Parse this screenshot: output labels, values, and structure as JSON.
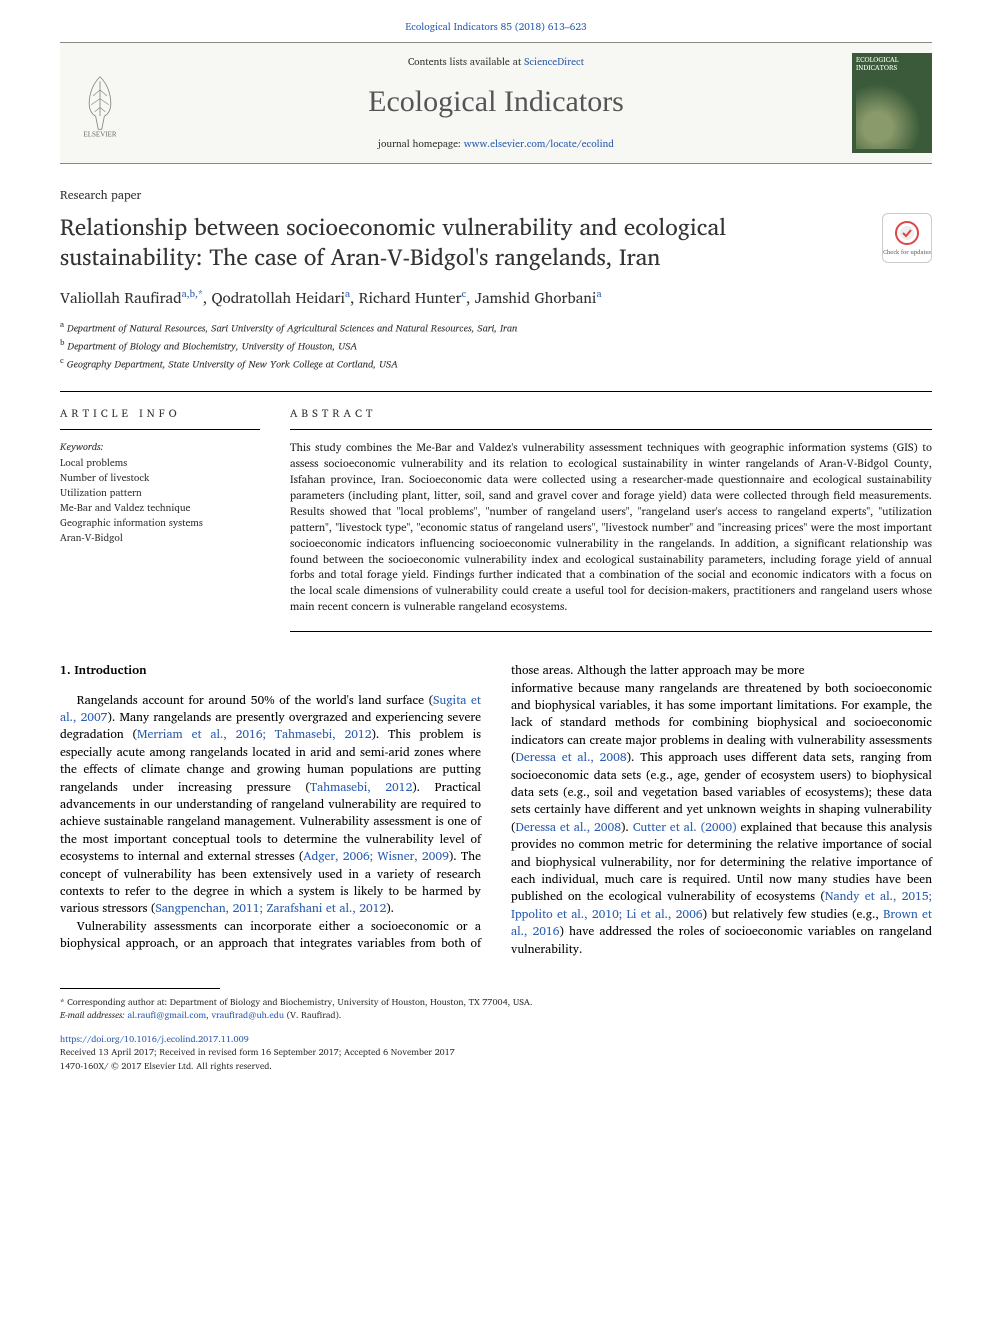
{
  "citation": "Ecological Indicators 85 (2018) 613–623",
  "masthead": {
    "contents_prefix": "Contents lists available at ",
    "contents_link": "ScienceDirect",
    "journal_name": "Ecological Indicators",
    "homepage_prefix": "journal homepage: ",
    "homepage_url": "www.elsevier.com/locate/ecolind",
    "publisher": "ELSEVIER",
    "cover_label": "ECOLOGICAL INDICATORS"
  },
  "article": {
    "type": "Research paper",
    "title": "Relationship between socioeconomic vulnerability and ecological sustainability: The case of Aran-V-Bidgol's rangelands, Iran",
    "check_updates_label": "Check for updates"
  },
  "authors_html": "Valiollah Raufirad<sup>a,b,*</sup>, Qodratollah Heidari<sup>a</sup>, Richard Hunter<sup>c</sup>, Jamshid Ghorbani<sup>a</sup>",
  "affiliations": [
    {
      "sup": "a",
      "text": "Department of Natural Resources, Sari University of Agricultural Sciences and Natural Resources, Sari, Iran"
    },
    {
      "sup": "b",
      "text": "Department of Biology and Biochemistry, University of Houston, USA"
    },
    {
      "sup": "c",
      "text": "Geography Department, State University of New York College at Cortland, USA"
    }
  ],
  "info": {
    "section_label": "ARTICLE INFO",
    "keywords_label": "Keywords:",
    "keywords": [
      "Local problems",
      "Number of livestock",
      "Utilization pattern",
      "Me-Bar and Valdez technique",
      "Geographic information systems",
      "Aran-V-Bidgol"
    ]
  },
  "abstract": {
    "section_label": "ABSTRACT",
    "text": "This study combines the Me-Bar and Valdez's vulnerability assessment techniques with geographic information systems (GIS) to assess socioeconomic vulnerability and its relation to ecological sustainability in winter rangelands of Aran-V-Bidgol County, Isfahan province, Iran. Socioeconomic data were collected using a researcher-made questionnaire and ecological sustainability parameters (including plant, litter, soil, sand and gravel cover and forage yield) data were collected through field measurements. Results showed that \"local problems\", \"number of rangeland users\", \"rangeland user's access to rangeland experts\", \"utilization pattern\", \"livestock type\", \"economic status of rangeland users\", \"livestock number\" and \"increasing prices\" were the most important socioeconomic indicators influencing socioeconomic vulnerability in the rangelands. In addition, a significant relationship was found between the socioeconomic vulnerability index and ecological sustainability parameters, including forage yield of annual forbs and total forage yield. Findings further indicated that a combination of the social and economic indicators with a focus on the local scale dimensions of vulnerability could create a useful tool for decision-makers, practitioners and rangeland users whose main recent concern is vulnerable rangeland ecosystems."
  },
  "body": {
    "heading": "1. Introduction",
    "p1_pre": "Rangelands account for around 50% of the world's land surface (",
    "p1_c1": "Sugita et al., 2007",
    "p1_mid1": "). Many rangelands are presently overgrazed and experiencing severe degradation (",
    "p1_c2": "Merriam et al., 2016; Tahmasebi, 2012",
    "p1_mid2": "). This problem is especially acute among rangelands located in arid and semi-arid zones where the effects of climate change and growing human populations are putting rangelands under increasing pressure (",
    "p1_c3": "Tahmasebi, 2012",
    "p1_mid3": "). Practical advancements in our understanding of rangeland vulnerability are required to achieve sustainable rangeland management. Vulnerability assessment is one of the most important conceptual tools to determine the vulnerability level of ecosystems to internal and external stresses (",
    "p1_c4": "Adger, 2006; Wisner, 2009",
    "p1_mid4": "). The concept of vulnerability has been extensively used in a variety of research contexts to refer to the degree in which a system is likely to be harmed by various stressors (",
    "p1_c5": "Sangpenchan, 2011; Zarafshani et al., 2012",
    "p1_end": ").",
    "p2": "Vulnerability assessments can incorporate either a socioeconomic or a biophysical approach, or an approach that integrates variables from both of those areas. Although the latter approach may be more",
    "p3_pre": "informative because many rangelands are threatened by both socioeconomic and biophysical variables, it has some important limitations. For example, the lack of standard methods for combining biophysical and socioeconomic indicators can create major problems in dealing with vulnerability assessments (",
    "p3_c1": "Deressa et al., 2008",
    "p3_mid1": "). This approach uses different data sets, ranging from socioeconomic data sets (e.g., age, gender of ecosystem users) to biophysical data sets (e.g., soil and vegetation based variables of ecosystems); these data sets certainly have different and yet unknown weights in shaping vulnerability (",
    "p3_c2": "Deressa et al., 2008",
    "p3_mid2": "). ",
    "p3_c3": "Cutter et al. (2000)",
    "p3_mid3": " explained that because this analysis provides no common metric for determining the relative importance of social and biophysical vulnerability, nor for determining the relative importance of each individual, much care is required. Until now many studies have been published on the ecological vulnerability of ecosystems (",
    "p3_c4": "Nandy et al., 2015; Ippolito et al., 2010; Li et al., 2006",
    "p3_mid4": ") but relatively few studies (e.g., ",
    "p3_c5": "Brown et al., 2016",
    "p3_end": ") have addressed the roles of socioeconomic variables on rangeland vulnerability."
  },
  "footnotes": {
    "corr": "* Corresponding author at: Department of Biology and Biochemistry, University of Houston, Houston, TX 77004, USA.",
    "email_label": "E-mail addresses: ",
    "email1": "al.raufi@gmail.com",
    "email_sep": ", ",
    "email2": "vraufirad@uh.edu",
    "email_suffix": " (V. Raufirad)."
  },
  "doi": {
    "url": "https://doi.org/10.1016/j.ecolind.2017.11.009",
    "received": "Received 13 April 2017; Received in revised form 16 September 2017; Accepted 6 November 2017",
    "issn": "1470-160X/ © 2017 Elsevier Ltd. All rights reserved."
  },
  "colors": {
    "link": "#2a5db0",
    "text": "#000000",
    "muted": "#333333",
    "rule": "#000000"
  }
}
